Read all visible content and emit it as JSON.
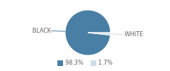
{
  "chart_data": {
    "type": "pie",
    "categories": [
      "BLACK",
      "WHITE"
    ],
    "values": [
      98.3,
      1.7
    ],
    "value_labels": [
      "98.3%",
      "1.7%"
    ],
    "colors": [
      "#4a7fa5",
      "#d0dde8"
    ],
    "legend": "bottom"
  }
}
